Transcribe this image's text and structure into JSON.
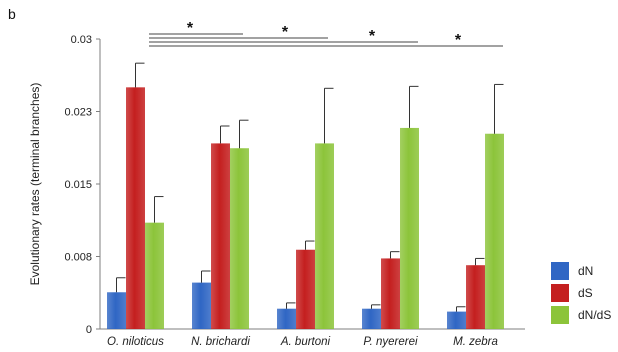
{
  "panel_label": "b",
  "colors": {
    "dN": "#2f66c4",
    "dS": "#c41f1f",
    "dN/dS": "#8cc43a",
    "axis": "#7f7f7f",
    "error": "#333333"
  },
  "chart_data": {
    "type": "bar",
    "ylabel": "Evolutionary rates (terminal branches)",
    "ylim": [
      0,
      0.03
    ],
    "yticks": [
      "0",
      "0.008",
      "0.015",
      "0.023",
      "0.03"
    ],
    "ytick_values": [
      0,
      0.0075,
      0.015,
      0.0225,
      0.03
    ],
    "categories": [
      "O. niloticus",
      "N. brichardi",
      "A. burtoni",
      "P. nyererei",
      "M. zebra"
    ],
    "series": [
      {
        "name": "dN",
        "values": [
          0.0038,
          0.0048,
          0.0021,
          0.0021,
          0.0018
        ],
        "errors": [
          0.0015,
          0.0012,
          0.0006,
          0.0004,
          0.0005
        ]
      },
      {
        "name": "dS",
        "values": [
          0.025,
          0.0192,
          0.0082,
          0.0073,
          0.0066
        ],
        "errors": [
          0.0025,
          0.0018,
          0.0009,
          0.0007,
          0.0007
        ]
      },
      {
        "name": "dN/dS",
        "values": [
          0.011,
          0.0187,
          0.0192,
          0.0208,
          0.0202
        ],
        "errors": [
          0.0027,
          0.0029,
          0.0057,
          0.0043,
          0.0051
        ]
      }
    ],
    "legend_position": "bottom-right",
    "significance": [
      {
        "from": "O. niloticus",
        "to": "N. brichardi",
        "label": "*"
      },
      {
        "from": "O. niloticus",
        "to": "A. burtoni",
        "label": "*"
      },
      {
        "from": "O. niloticus",
        "to": "P. nyererei",
        "label": "*"
      },
      {
        "from": "O. niloticus",
        "to": "M. zebra",
        "label": "*"
      }
    ]
  }
}
